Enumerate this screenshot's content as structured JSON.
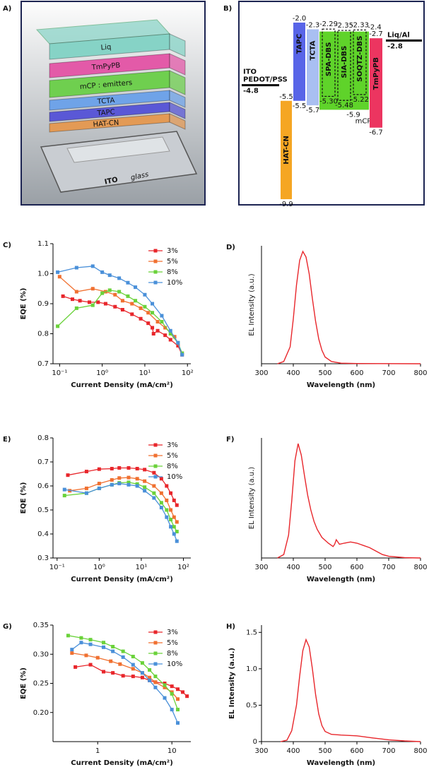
{
  "device_stack": {
    "panel_label": "A)",
    "layers": [
      {
        "label": "Liq",
        "color": "#86d3c6"
      },
      {
        "label": "TmPyPB",
        "color": "#e35aa8"
      },
      {
        "label": "mCP : emitters",
        "color": "#6fcf4f"
      },
      {
        "label": "TCTA",
        "color": "#6fa3e8"
      },
      {
        "label": "TAPC",
        "color": "#5a58d6"
      },
      {
        "label": "HAT-CN",
        "color": "#e39a55"
      }
    ],
    "substrate_labels": [
      "ITO",
      "glass"
    ]
  },
  "energy_diagram": {
    "panel_label": "B)",
    "electrodes": [
      {
        "lines": [
          "ITO",
          "PEDOT/PSS"
        ],
        "level": -4.8,
        "level_label": "-4.8"
      },
      {
        "lines": [
          "Liq/Al"
        ],
        "level": -2.8,
        "level_label": "-2.8"
      }
    ],
    "layers": [
      {
        "name": "HAT-CN",
        "lumo": -5.5,
        "lumo_label": "-5.5",
        "homo": -9.9,
        "homo_label": "-9.9",
        "color": "#f5a623"
      },
      {
        "name": "TAPC",
        "lumo": -2.0,
        "lumo_label": "-2.0",
        "homo": -5.5,
        "homo_label": "-5.5",
        "color": "#5865e8"
      },
      {
        "name": "TCTA",
        "lumo": -2.3,
        "lumo_label": "-2.3",
        "homo": -5.7,
        "homo_label": "-5.7",
        "color": "#a9bff2"
      },
      {
        "name": "mCP",
        "lumo": -2.4,
        "lumo_label": "-2.4",
        "homo": -5.9,
        "homo_label": "-5.9",
        "color": "#5fd32a"
      },
      {
        "name": "TmPyPB",
        "lumo": -2.7,
        "lumo_label": "-2.7",
        "homo": -6.7,
        "homo_label": "-6.7",
        "color": "#ec3560"
      }
    ],
    "emitters": [
      {
        "name": "SPA-DBS",
        "lumo": -2.29,
        "lumo_label": "-2.29",
        "homo": -5.3,
        "homo_label": "-5.30"
      },
      {
        "name": "SIA-DBS",
        "lumo": -2.35,
        "lumo_label": "-2.35",
        "homo": -5.48,
        "homo_label": "-5.48"
      },
      {
        "name": "SOQTZ-DBS",
        "lumo": -2.33,
        "lumo_label": "-2.33",
        "homo": -5.22,
        "homo_label": "-5.22"
      }
    ]
  },
  "chart_data": [
    {
      "type": "line",
      "panel_label": "C)",
      "xlabel": "Current Density (mA/cm²)",
      "ylabel": "EQE (%)",
      "xscale": "log",
      "xlim": [
        0.07,
        120
      ],
      "xticks": [
        {
          "value": 0.1,
          "label": "10⁻¹"
        },
        {
          "value": 1,
          "label": "10⁰"
        },
        {
          "value": 10,
          "label": "10¹"
        },
        {
          "value": 100,
          "label": "10²"
        }
      ],
      "ylim": [
        0.7,
        1.1
      ],
      "yticks": [
        0.7,
        0.8,
        0.9,
        {
          "value": 1,
          "label": "1.0"
        },
        1.1
      ],
      "legend": "upper right",
      "marker": "square",
      "series": [
        {
          "name": "3%",
          "color": "#e8262b",
          "x": [
            0.12,
            0.2,
            0.3,
            0.5,
            0.8,
            1.2,
            2,
            3,
            5,
            8,
            12,
            15,
            16,
            20,
            30,
            40,
            60,
            75
          ],
          "values": [
            0.925,
            0.915,
            0.91,
            0.905,
            0.905,
            0.9,
            0.89,
            0.88,
            0.865,
            0.85,
            0.835,
            0.82,
            0.8,
            0.81,
            0.795,
            0.78,
            0.76,
            0.73
          ]
        },
        {
          "name": "5%",
          "color": "#f07030",
          "x": [
            0.1,
            0.25,
            0.6,
            1.2,
            2,
            3,
            5,
            8,
            12,
            20,
            30,
            50,
            75
          ],
          "values": [
            0.99,
            0.94,
            0.95,
            0.94,
            0.93,
            0.91,
            0.9,
            0.885,
            0.87,
            0.84,
            0.82,
            0.79,
            0.735
          ]
        },
        {
          "name": "8%",
          "color": "#6ad23a",
          "x": [
            0.09,
            0.25,
            0.6,
            1,
            1.5,
            2.5,
            4,
            6,
            10,
            15,
            25,
            40,
            60,
            75
          ],
          "values": [
            0.825,
            0.885,
            0.895,
            0.935,
            0.945,
            0.94,
            0.925,
            0.91,
            0.89,
            0.87,
            0.84,
            0.8,
            0.77,
            0.735
          ]
        },
        {
          "name": "10%",
          "color": "#4a90d9",
          "x": [
            0.09,
            0.25,
            0.6,
            1,
            1.5,
            2.5,
            4,
            6,
            10,
            15,
            25,
            40,
            60,
            75
          ],
          "values": [
            1.005,
            1.02,
            1.025,
            1.005,
            0.995,
            0.985,
            0.97,
            0.955,
            0.93,
            0.9,
            0.86,
            0.81,
            0.77,
            0.73
          ]
        }
      ]
    },
    {
      "type": "line",
      "panel_label": "D)",
      "xlabel": "Wavelength (nm)",
      "ylabel": "EL Intensity (a.u.)",
      "xlim": [
        300,
        800
      ],
      "xticks": [
        300,
        400,
        500,
        600,
        700,
        800
      ],
      "ylim": [
        0,
        1.05
      ],
      "yticks": [],
      "x": [
        350,
        370,
        390,
        400,
        410,
        420,
        430,
        440,
        450,
        460,
        470,
        480,
        490,
        500,
        520,
        550,
        600,
        800
      ],
      "series": [
        {
          "color": "#e8262b",
          "values": [
            0,
            0.02,
            0.15,
            0.4,
            0.7,
            0.92,
            1.0,
            0.95,
            0.8,
            0.58,
            0.38,
            0.22,
            0.12,
            0.06,
            0.02,
            0.005,
            0.002,
            0
          ]
        }
      ]
    },
    {
      "type": "line",
      "panel_label": "E)",
      "xlabel": "Current Density (mA/cm²)",
      "ylabel": "EQE (%)",
      "xscale": "log",
      "xlim": [
        0.08,
        150
      ],
      "xticks": [
        {
          "value": 0.1,
          "label": "10⁻¹"
        },
        {
          "value": 1,
          "label": "10⁰"
        },
        {
          "value": 10,
          "label": "10¹"
        },
        {
          "value": 100,
          "label": "10²"
        }
      ],
      "ylim": [
        0.3,
        0.8
      ],
      "yticks": [
        0.3,
        0.4,
        0.5,
        0.6,
        0.7,
        0.8
      ],
      "legend": "upper right",
      "marker": "square",
      "series": [
        {
          "name": "3%",
          "color": "#e8262b",
          "x": [
            0.18,
            0.5,
            1,
            2,
            3,
            5,
            8,
            12,
            20,
            30,
            40,
            50,
            60,
            70
          ],
          "values": [
            0.645,
            0.66,
            0.67,
            0.672,
            0.675,
            0.675,
            0.672,
            0.668,
            0.655,
            0.63,
            0.6,
            0.57,
            0.54,
            0.52
          ]
        },
        {
          "name": "5%",
          "color": "#f07030",
          "x": [
            0.2,
            0.5,
            1,
            2,
            3,
            5,
            8,
            12,
            20,
            30,
            40,
            50,
            60,
            70
          ],
          "values": [
            0.58,
            0.59,
            0.61,
            0.625,
            0.633,
            0.635,
            0.63,
            0.62,
            0.6,
            0.57,
            0.54,
            0.5,
            0.47,
            0.45
          ]
        },
        {
          "name": "8%",
          "color": "#6ad23a",
          "x": [
            0.15,
            0.5,
            1,
            2,
            3,
            5,
            8,
            12,
            20,
            30,
            40,
            50,
            60,
            70
          ],
          "values": [
            0.56,
            0.57,
            0.59,
            0.605,
            0.613,
            0.615,
            0.608,
            0.595,
            0.57,
            0.53,
            0.5,
            0.46,
            0.43,
            0.41
          ]
        },
        {
          "name": "10%",
          "color": "#4a90d9",
          "x": [
            0.15,
            0.5,
            1,
            2,
            3,
            5,
            8,
            12,
            20,
            30,
            40,
            50,
            60,
            70
          ],
          "values": [
            0.585,
            0.57,
            0.59,
            0.605,
            0.61,
            0.605,
            0.6,
            0.58,
            0.55,
            0.51,
            0.47,
            0.43,
            0.4,
            0.37
          ]
        }
      ]
    },
    {
      "type": "line",
      "panel_label": "F)",
      "xlabel": "Wavelength (nm)",
      "ylabel": "EL Intensity (a.u.)",
      "xlim": [
        300,
        800
      ],
      "xticks": [
        300,
        400,
        500,
        600,
        700,
        800
      ],
      "ylim": [
        0,
        1.05
      ],
      "yticks": [],
      "x": [
        350,
        370,
        385,
        395,
        405,
        415,
        425,
        435,
        445,
        455,
        465,
        475,
        490,
        510,
        525,
        530,
        535,
        545,
        560,
        580,
        600,
        620,
        640,
        660,
        680,
        700,
        750,
        800
      ],
      "series": [
        {
          "color": "#e8262b",
          "values": [
            0,
            0.03,
            0.2,
            0.5,
            0.85,
            1.0,
            0.9,
            0.72,
            0.55,
            0.42,
            0.32,
            0.25,
            0.18,
            0.13,
            0.1,
            0.12,
            0.16,
            0.12,
            0.13,
            0.14,
            0.13,
            0.11,
            0.09,
            0.06,
            0.03,
            0.015,
            0.003,
            0
          ]
        }
      ]
    },
    {
      "type": "line",
      "panel_label": "G)",
      "xlabel": "Current Density (mA/cm²)",
      "ylabel": "EQE (%)",
      "xscale": "log",
      "xlim": [
        0.25,
        18
      ],
      "xticks": [
        1,
        10
      ],
      "ylim": [
        0.15,
        0.35
      ],
      "yticks": [
        {
          "value": 0.2,
          "label": "0.20"
        },
        0.25,
        {
          "value": 0.3,
          "label": "0.30"
        },
        0.35
      ],
      "legend": "upper right",
      "marker": "square",
      "series": [
        {
          "name": "3%",
          "color": "#e8262b",
          "x": [
            0.5,
            0.8,
            1.2,
            1.6,
            2.2,
            3,
            4,
            5,
            6,
            8,
            10,
            12,
            14,
            16
          ],
          "values": [
            0.278,
            0.282,
            0.27,
            0.268,
            0.263,
            0.262,
            0.26,
            0.255,
            0.252,
            0.25,
            0.245,
            0.24,
            0.235,
            0.228
          ]
        },
        {
          "name": "5%",
          "color": "#f07030",
          "x": [
            0.45,
            0.7,
            1,
            1.5,
            2,
            3,
            4,
            5,
            6,
            8,
            10,
            12
          ],
          "values": [
            0.302,
            0.298,
            0.294,
            0.288,
            0.283,
            0.275,
            0.268,
            0.26,
            0.252,
            0.243,
            0.235,
            0.223
          ]
        },
        {
          "name": "8%",
          "color": "#6ad23a",
          "x": [
            0.4,
            0.6,
            0.8,
            1.2,
            1.6,
            2.2,
            3,
            4,
            5,
            6,
            8,
            10,
            12
          ],
          "values": [
            0.332,
            0.328,
            0.325,
            0.32,
            0.313,
            0.305,
            0.296,
            0.285,
            0.273,
            0.262,
            0.247,
            0.232,
            0.205
          ]
        },
        {
          "name": "10%",
          "color": "#4a90d9",
          "x": [
            0.45,
            0.6,
            0.8,
            1.2,
            1.6,
            2.2,
            3,
            4,
            5,
            6,
            8,
            10,
            12
          ],
          "values": [
            0.308,
            0.32,
            0.317,
            0.312,
            0.305,
            0.295,
            0.282,
            0.268,
            0.255,
            0.243,
            0.225,
            0.205,
            0.182
          ]
        }
      ]
    },
    {
      "type": "line",
      "panel_label": "H)",
      "xlabel": "Wavelength (nm)",
      "ylabel": "EL Intensity (a.u.)",
      "xlim": [
        300,
        800
      ],
      "xticks": [
        300,
        400,
        500,
        600,
        700,
        800
      ],
      "ylim": [
        0,
        1.6
      ],
      "yticks": [
        0,
        0.5,
        {
          "value": 1,
          "label": "1.0"
        },
        1.5
      ],
      "x": [
        360,
        380,
        395,
        410,
        420,
        430,
        440,
        450,
        460,
        470,
        480,
        490,
        500,
        520,
        550,
        600,
        650,
        700,
        750,
        800
      ],
      "series": [
        {
          "color": "#e8262b",
          "values": [
            0,
            0.02,
            0.15,
            0.5,
            0.9,
            1.25,
            1.4,
            1.3,
            1.0,
            0.65,
            0.38,
            0.22,
            0.14,
            0.1,
            0.09,
            0.08,
            0.05,
            0.025,
            0.01,
            0
          ]
        }
      ]
    }
  ]
}
